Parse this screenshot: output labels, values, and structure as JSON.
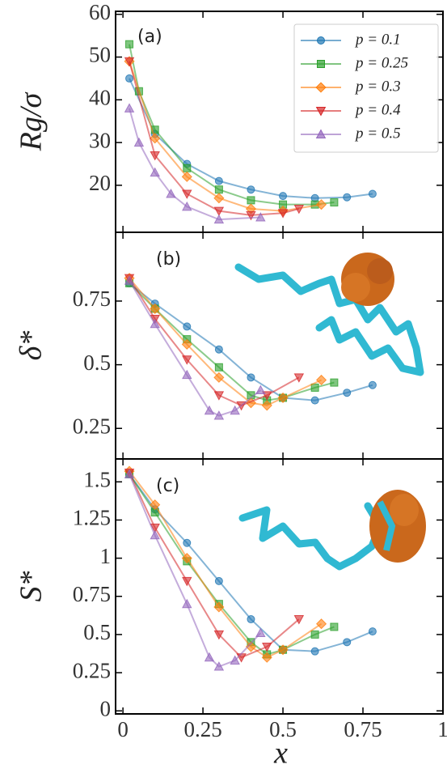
{
  "chart_data": [
    {
      "type": "line",
      "label": "(a)",
      "ylabel": "Rg/σ",
      "xlim": [
        -0.023,
        1.0
      ],
      "xticks": [
        0,
        0.25,
        0.5,
        0.75,
        1
      ],
      "ylim": [
        9,
        60.7
      ],
      "yticks": [
        20,
        30,
        40,
        50,
        60
      ],
      "legend": "upper right",
      "series": [
        {
          "name": "p = 0.1",
          "color": "#1f77b4",
          "marker": "circle",
          "x": [
            0.02,
            0.1,
            0.2,
            0.3,
            0.4,
            0.5,
            0.6,
            0.7,
            0.78
          ],
          "values": [
            45,
            32,
            25,
            21,
            19,
            17.5,
            17,
            17.2,
            18
          ]
        },
        {
          "name": "p = 0.25",
          "color": "#2ca02c",
          "marker": "square",
          "x": [
            0.02,
            0.05,
            0.1,
            0.2,
            0.3,
            0.4,
            0.5,
            0.6,
            0.66
          ],
          "values": [
            53,
            42,
            33,
            24,
            19,
            16.5,
            15.5,
            15.5,
            16
          ]
        },
        {
          "name": "p = 0.3",
          "color": "#ff7f0e",
          "marker": "diamond",
          "x": [
            0.02,
            0.1,
            0.2,
            0.3,
            0.4,
            0.5,
            0.62
          ],
          "values": [
            49,
            31,
            22,
            17,
            14.5,
            14,
            15.5
          ]
        },
        {
          "name": "p = 0.4",
          "color": "#d62728",
          "marker": "triangle-down",
          "x": [
            0.02,
            0.1,
            0.2,
            0.3,
            0.4,
            0.5,
            0.55
          ],
          "values": [
            49,
            27,
            18,
            14,
            13,
            13.5,
            14.5
          ]
        },
        {
          "name": "p = 0.5",
          "color": "#9467bd",
          "marker": "triangle-up",
          "x": [
            0.02,
            0.05,
            0.1,
            0.15,
            0.2,
            0.3,
            0.43
          ],
          "values": [
            38,
            30,
            23,
            18,
            15,
            12,
            12.5
          ]
        }
      ]
    },
    {
      "type": "line",
      "label": "(b)",
      "ylabel": "δ*",
      "xlim": [
        -0.023,
        1.0
      ],
      "xticks": [
        0,
        0.25,
        0.5,
        0.75,
        1
      ],
      "ylim": [
        0.13,
        1.02
      ],
      "yticks": [
        0.25,
        0.5,
        0.75
      ],
      "series": [
        {
          "color": "#1f77b4",
          "marker": "circle",
          "x": [
            0.02,
            0.1,
            0.2,
            0.3,
            0.4,
            0.5,
            0.6,
            0.7,
            0.78
          ],
          "values": [
            0.82,
            0.74,
            0.65,
            0.56,
            0.45,
            0.37,
            0.36,
            0.39,
            0.42
          ]
        },
        {
          "color": "#2ca02c",
          "marker": "square",
          "x": [
            0.02,
            0.1,
            0.2,
            0.3,
            0.4,
            0.45,
            0.5,
            0.6,
            0.66
          ],
          "values": [
            0.82,
            0.72,
            0.6,
            0.49,
            0.38,
            0.36,
            0.37,
            0.41,
            0.43
          ]
        },
        {
          "color": "#ff7f0e",
          "marker": "diamond",
          "x": [
            0.02,
            0.1,
            0.2,
            0.3,
            0.4,
            0.45,
            0.5,
            0.62
          ],
          "values": [
            0.84,
            0.72,
            0.58,
            0.45,
            0.35,
            0.34,
            0.37,
            0.44
          ]
        },
        {
          "color": "#d62728",
          "marker": "triangle-down",
          "x": [
            0.02,
            0.1,
            0.2,
            0.3,
            0.37,
            0.45,
            0.55
          ],
          "values": [
            0.84,
            0.68,
            0.52,
            0.38,
            0.34,
            0.38,
            0.45
          ]
        },
        {
          "color": "#9467bd",
          "marker": "triangle-up",
          "x": [
            0.02,
            0.1,
            0.2,
            0.27,
            0.3,
            0.35,
            0.43
          ],
          "values": [
            0.83,
            0.66,
            0.46,
            0.32,
            0.3,
            0.32,
            0.4
          ]
        }
      ]
    },
    {
      "type": "line",
      "label": "(c)",
      "ylabel": "S*",
      "xlabel": "x",
      "xlim": [
        -0.023,
        1.0
      ],
      "xticks": [
        0,
        0.25,
        0.5,
        0.75,
        1
      ],
      "ylim": [
        -0.02,
        1.65
      ],
      "yticks": [
        0,
        0.25,
        0.5,
        0.75,
        1,
        1.25,
        1.5
      ],
      "series": [
        {
          "color": "#1f77b4",
          "marker": "circle",
          "x": [
            0.02,
            0.1,
            0.2,
            0.3,
            0.4,
            0.5,
            0.6,
            0.7,
            0.78
          ],
          "values": [
            1.55,
            1.32,
            1.1,
            0.85,
            0.6,
            0.4,
            0.39,
            0.45,
            0.52
          ]
        },
        {
          "color": "#2ca02c",
          "marker": "square",
          "x": [
            0.02,
            0.1,
            0.2,
            0.3,
            0.4,
            0.45,
            0.5,
            0.6,
            0.66
          ],
          "values": [
            1.55,
            1.3,
            0.98,
            0.7,
            0.45,
            0.37,
            0.4,
            0.5,
            0.55
          ]
        },
        {
          "color": "#ff7f0e",
          "marker": "diamond",
          "x": [
            0.02,
            0.1,
            0.2,
            0.3,
            0.4,
            0.45,
            0.5,
            0.62
          ],
          "values": [
            1.57,
            1.35,
            1.0,
            0.68,
            0.42,
            0.35,
            0.4,
            0.57
          ]
        },
        {
          "color": "#d62728",
          "marker": "triangle-down",
          "x": [
            0.02,
            0.1,
            0.2,
            0.3,
            0.37,
            0.45,
            0.55
          ],
          "values": [
            1.56,
            1.2,
            0.85,
            0.5,
            0.35,
            0.42,
            0.6
          ]
        },
        {
          "color": "#9467bd",
          "marker": "triangle-up",
          "x": [
            0.02,
            0.1,
            0.2,
            0.27,
            0.3,
            0.35,
            0.43
          ],
          "values": [
            1.55,
            1.15,
            0.7,
            0.35,
            0.29,
            0.33,
            0.51
          ]
        }
      ]
    }
  ]
}
